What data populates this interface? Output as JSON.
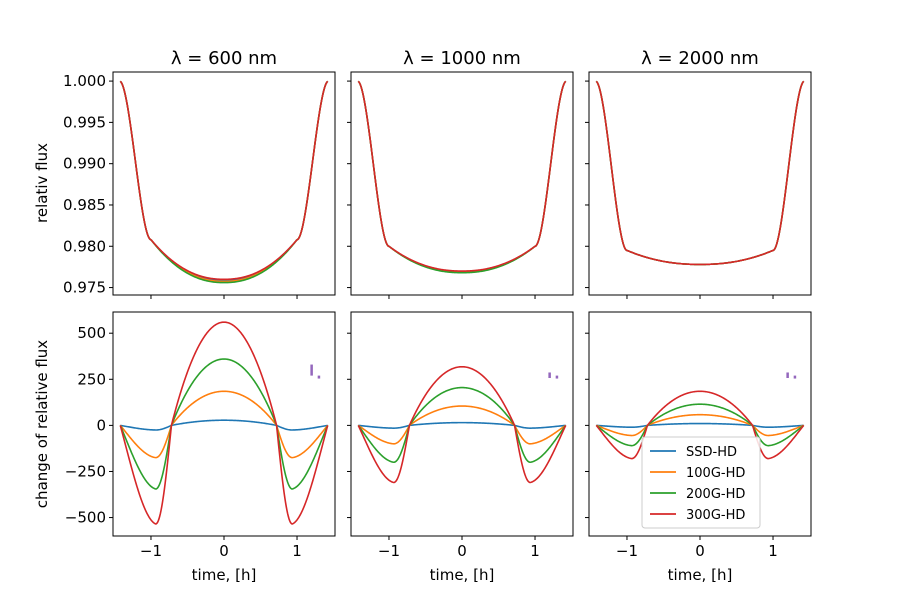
{
  "ylabels": {
    "top": "relativ flux",
    "bottom": "change of relative flux"
  },
  "xlabel": "time, [h]",
  "colors": {
    "SSD-HD": "#1f77b4",
    "100G-HD": "#ff7f0e",
    "200G-HD": "#2ca02c",
    "300G-HD": "#d62728",
    "errorbar": "#9467bd"
  },
  "legend": {
    "panel": 5,
    "placement": "lower-center",
    "entries": [
      "SSD-HD",
      "100G-HD",
      "200G-HD",
      "300G-HD"
    ]
  },
  "chart_data": [
    {
      "type": "line",
      "panel": "top",
      "column": 0,
      "title": "λ = 600 nm",
      "xlim": [
        -1.52,
        1.52
      ],
      "ylim": [
        0.9741,
        1.0011
      ],
      "xticks": [
        -1,
        0,
        1
      ],
      "yticks": [
        0.975,
        0.98,
        0.985,
        0.99,
        0.995,
        1.0
      ],
      "ytick_labels": [
        "0.975",
        "0.980",
        "0.985",
        "0.990",
        "0.995",
        "1.000"
      ],
      "model": {
        "t1": 1.43,
        "t2": 1.0,
        "depth_edge": 0.9808
      },
      "series": [
        {
          "name": "SSD-HD",
          "min": 0.9759
        },
        {
          "name": "100G-HD",
          "min": 0.97575
        },
        {
          "name": "200G-HD",
          "min": 0.9756
        },
        {
          "name": "300G-HD",
          "min": 0.976
        }
      ]
    },
    {
      "type": "line",
      "panel": "top",
      "column": 1,
      "title": "λ = 1000 nm",
      "xlim": [
        -1.52,
        1.52
      ],
      "ylim": [
        0.9741,
        1.0011
      ],
      "xticks": [
        -1,
        0,
        1
      ],
      "yticks": [
        0.975,
        0.98,
        0.985,
        0.99,
        0.995,
        1.0
      ],
      "model": {
        "t1": 1.43,
        "t2": 1.0,
        "depth_edge": 0.98
      },
      "series": [
        {
          "name": "SSD-HD",
          "min": 0.9769
        },
        {
          "name": "100G-HD",
          "min": 0.97685
        },
        {
          "name": "200G-HD",
          "min": 0.9768
        },
        {
          "name": "300G-HD",
          "min": 0.977
        }
      ]
    },
    {
      "type": "line",
      "panel": "top",
      "column": 2,
      "title": "λ = 2000 nm",
      "xlim": [
        -1.52,
        1.52
      ],
      "ylim": [
        0.9741,
        1.0011
      ],
      "xticks": [
        -1,
        0,
        1
      ],
      "yticks": [
        0.975,
        0.98,
        0.985,
        0.99,
        0.995,
        1.0
      ],
      "model": {
        "t1": 1.43,
        "t2": 1.0,
        "depth_edge": 0.9795
      },
      "series": [
        {
          "name": "SSD-HD",
          "min": 0.9778
        },
        {
          "name": "100G-HD",
          "min": 0.9778
        },
        {
          "name": "200G-HD",
          "min": 0.9778
        },
        {
          "name": "300G-HD",
          "min": 0.9778
        }
      ]
    },
    {
      "type": "line",
      "panel": "bottom",
      "column": 0,
      "xlabel": "time, [h]",
      "xlim": [
        -1.52,
        1.52
      ],
      "ylim": [
        -600,
        615
      ],
      "xticks": [
        -1,
        0,
        1
      ],
      "yticks": [
        -500,
        -250,
        0,
        250,
        500
      ],
      "ytick_labels": [
        "−500",
        "−250",
        "0",
        "250",
        "500"
      ],
      "errorbars": [
        {
          "x": 1.2,
          "y": 300,
          "half": 30
        },
        {
          "x": 1.3,
          "y": 262,
          "half": 8
        }
      ],
      "series": [
        {
          "name": "SSD-HD",
          "peak": 28,
          "trough": -25
        },
        {
          "name": "100G-HD",
          "peak": 185,
          "trough": -175
        },
        {
          "name": "200G-HD",
          "peak": 360,
          "trough": -345
        },
        {
          "name": "300G-HD",
          "peak": 560,
          "trough": -535
        }
      ]
    },
    {
      "type": "line",
      "panel": "bottom",
      "column": 1,
      "xlabel": "time, [h]",
      "xlim": [
        -1.52,
        1.52
      ],
      "ylim": [
        -600,
        615
      ],
      "xticks": [
        -1,
        0,
        1
      ],
      "yticks": [
        -500,
        -250,
        0,
        250,
        500
      ],
      "errorbars": [
        {
          "x": 1.2,
          "y": 272,
          "half": 15
        },
        {
          "x": 1.3,
          "y": 262,
          "half": 8
        }
      ],
      "series": [
        {
          "name": "SSD-HD",
          "peak": 15,
          "trough": -15
        },
        {
          "name": "100G-HD",
          "peak": 105,
          "trough": -100
        },
        {
          "name": "200G-HD",
          "peak": 205,
          "trough": -200
        },
        {
          "name": "300G-HD",
          "peak": 318,
          "trough": -310
        }
      ]
    },
    {
      "type": "line",
      "panel": "bottom",
      "column": 2,
      "xlabel": "time, [h]",
      "xlim": [
        -1.52,
        1.52
      ],
      "ylim": [
        -600,
        615
      ],
      "xticks": [
        -1,
        0,
        1
      ],
      "yticks": [
        -500,
        -250,
        0,
        250,
        500
      ],
      "errorbars": [
        {
          "x": 1.2,
          "y": 272,
          "half": 15
        },
        {
          "x": 1.3,
          "y": 262,
          "half": 8
        }
      ],
      "series": [
        {
          "name": "SSD-HD",
          "peak": 10,
          "trough": -10
        },
        {
          "name": "100G-HD",
          "peak": 58,
          "trough": -55
        },
        {
          "name": "200G-HD",
          "peak": 115,
          "trough": -110
        },
        {
          "name": "300G-HD",
          "peak": 185,
          "trough": -180
        }
      ]
    }
  ]
}
